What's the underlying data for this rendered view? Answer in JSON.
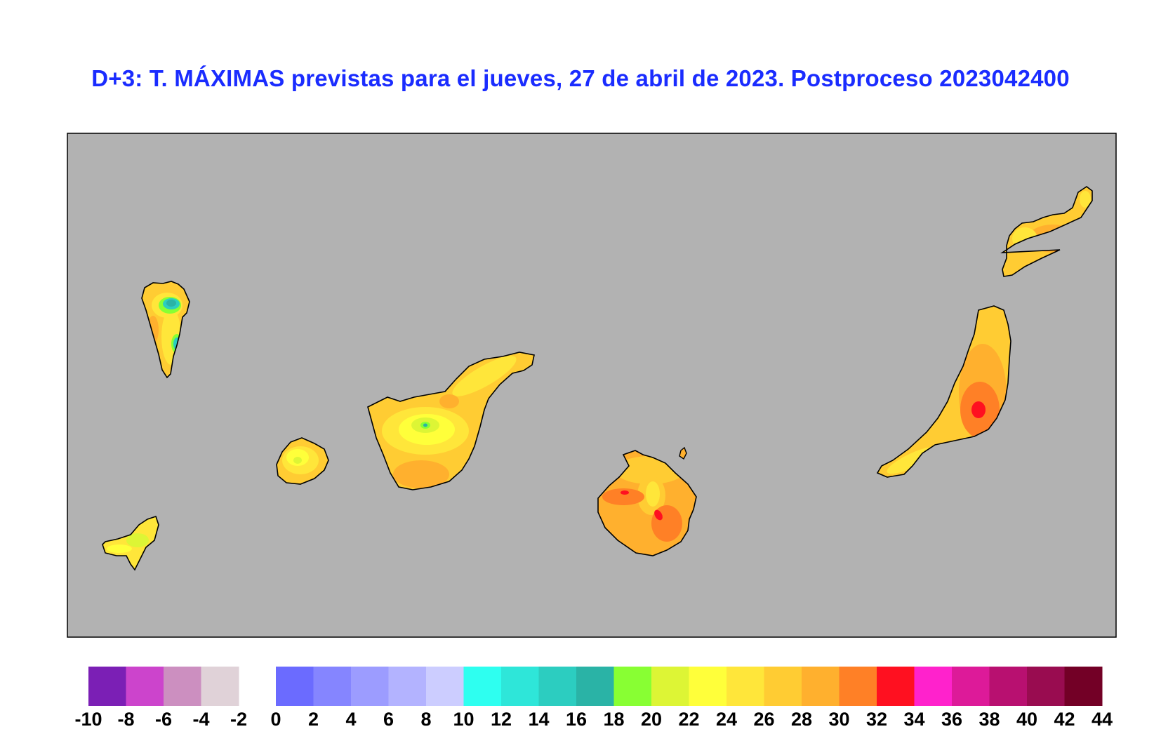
{
  "title": "D+3: T. MÁXIMAS previstas para el jueves, 27 de abril de 2023. Postproceso 2023042400",
  "map": {
    "background_color": "#b2b2b2",
    "islands": [
      "la-palma",
      "el-hierro",
      "la-gomera",
      "tenerife",
      "gran-canaria",
      "fuerteventura",
      "lanzarote"
    ]
  },
  "legend": {
    "negative_colors": [
      "#7b1fb5",
      "#cc44cc",
      "#cc8fc0",
      "#e0d2d8"
    ],
    "negative_labels": [
      "-10",
      "-8",
      "-6",
      "-4",
      "-2"
    ],
    "positive_colors": [
      "#6b6bff",
      "#8585ff",
      "#9c9cff",
      "#b3b3ff",
      "#cccdff",
      "#2efff0",
      "#2ee6d9",
      "#2ccdc0",
      "#2ab3a6",
      "#88ff33",
      "#ddf535",
      "#ffff3a",
      "#ffe63a",
      "#ffcc33",
      "#ffb02e",
      "#ff8026",
      "#ff1020",
      "#ff22cc",
      "#dd1a99",
      "#b81070",
      "#990c50",
      "#730026"
    ],
    "positive_labels": [
      "0",
      "2",
      "4",
      "6",
      "8",
      "10",
      "12",
      "14",
      "16",
      "18",
      "20",
      "22",
      "24",
      "26",
      "28",
      "30",
      "32",
      "34",
      "36",
      "38",
      "40",
      "42",
      "44"
    ]
  }
}
